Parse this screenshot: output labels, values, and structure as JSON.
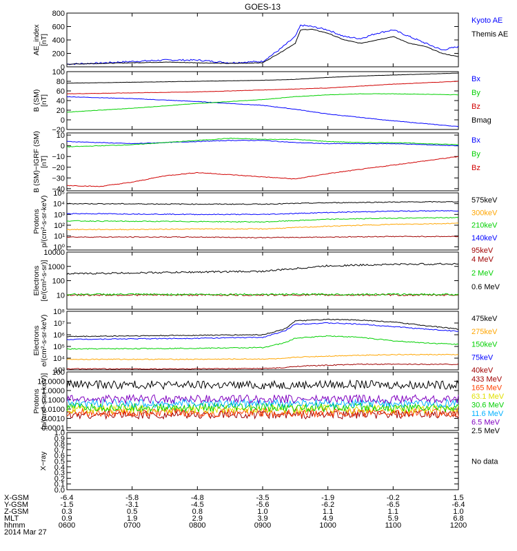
{
  "title": "GOES-13",
  "date": "2014 Mar 27",
  "footer": {
    "rows": [
      {
        "label": "X-GSM",
        "values": [
          "-6.4",
          "-5.8",
          "-4.8",
          "-3.5",
          "-1.9",
          "-0.2",
          "1.5"
        ]
      },
      {
        "label": "Y-GSM",
        "values": [
          "-1.5",
          "-3.1",
          "-4.5",
          "-5.6",
          "-6.2",
          "-6.5",
          "-6.4"
        ]
      },
      {
        "label": "Z-GSM",
        "values": [
          "0.3",
          "0.5",
          "0.8",
          "1.0",
          "1.1",
          "1.1",
          "1.0"
        ]
      },
      {
        "label": "MLT",
        "values": [
          "0.9",
          "1.9",
          "2.9",
          "3.9",
          "4.9",
          "5.9",
          "6.8"
        ]
      },
      {
        "label": "hhmm",
        "values": [
          "0600",
          "0700",
          "0800",
          "0900",
          "1000",
          "1100",
          "1200"
        ]
      }
    ]
  },
  "chart_data": [
    {
      "type": "line",
      "ylabel": [
        "AE_index",
        "[nT]"
      ],
      "scale": "linear",
      "ylim": [
        0,
        800
      ],
      "yticks": [
        0,
        200,
        400,
        600,
        800
      ],
      "yticklabels": [
        "0",
        "200",
        "400",
        "600",
        "800"
      ],
      "x": [
        "0600",
        "0630",
        "0700",
        "0730",
        "0800",
        "0830",
        "0900",
        "0915",
        "0930",
        "0935",
        "0945",
        "1000",
        "1015",
        "1030",
        "1045",
        "1100",
        "1115",
        "1130",
        "1145",
        "1200"
      ],
      "series": [
        {
          "name": "Kyoto AE",
          "color": "#0000ff",
          "values": [
            40,
            55,
            80,
            100,
            100,
            60,
            80,
            250,
            450,
            620,
            600,
            550,
            450,
            420,
            500,
            550,
            450,
            350,
            250,
            300
          ]
        },
        {
          "name": "Themis AE",
          "color": "#000000",
          "values": [
            40,
            50,
            60,
            70,
            60,
            50,
            60,
            200,
            350,
            550,
            560,
            500,
            400,
            350,
            400,
            450,
            350,
            300,
            200,
            150
          ]
        }
      ]
    },
    {
      "type": "line",
      "ylabel": [
        "B (SM)",
        "[nT]"
      ],
      "scale": "linear",
      "ylim": [
        -20,
        100
      ],
      "yticks": [
        -20,
        0,
        20,
        40,
        60,
        80,
        100
      ],
      "yticklabels": [
        "−20",
        "0",
        "20",
        "40",
        "60",
        "80",
        "100"
      ],
      "x": [
        "0600",
        "0700",
        "0800",
        "0830",
        "0900",
        "0930",
        "1000",
        "1030",
        "1100",
        "1130",
        "1200"
      ],
      "series": [
        {
          "name": "Bx",
          "color": "#0000ff",
          "values": [
            48,
            44,
            38,
            34,
            30,
            22,
            12,
            5,
            -2,
            -8,
            -14
          ]
        },
        {
          "name": "By",
          "color": "#00d000",
          "values": [
            16,
            24,
            34,
            38,
            42,
            48,
            52,
            54,
            54,
            53,
            52
          ]
        },
        {
          "name": "Bz",
          "color": "#d00000",
          "values": [
            54,
            56,
            58,
            60,
            62,
            64,
            66,
            70,
            74,
            77,
            80
          ]
        },
        {
          "name": "Bmag",
          "color": "#000000",
          "values": [
            76,
            78,
            80,
            81,
            82,
            84,
            88,
            91,
            93,
            95,
            97
          ]
        }
      ]
    },
    {
      "type": "line",
      "ylabel": [
        "B (SM)−IGRF (SM)",
        "[nT]"
      ],
      "scale": "linear",
      "ylim": [
        -42,
        12
      ],
      "yticks": [
        -40,
        -30,
        -20,
        -10,
        0,
        10
      ],
      "yticklabels": [
        "−40",
        "−30",
        "−20",
        "−10",
        "0",
        "10"
      ],
      "x": [
        "0600",
        "0630",
        "0700",
        "0730",
        "0800",
        "0830",
        "0900",
        "0930",
        "1000",
        "1030",
        "1100",
        "1130",
        "1200"
      ],
      "series": [
        {
          "name": "Bx",
          "color": "#0000ff",
          "values": [
            4,
            3,
            2,
            3,
            4,
            5,
            5,
            3,
            2,
            2,
            2,
            1,
            0
          ]
        },
        {
          "name": "By",
          "color": "#00d000",
          "values": [
            -1,
            0,
            1,
            3,
            5,
            7,
            6,
            6,
            4,
            3,
            3,
            2,
            1
          ]
        },
        {
          "name": "Bz",
          "color": "#d00000",
          "values": [
            -37,
            -38,
            -34,
            -28,
            -25,
            -27,
            -29,
            -31,
            -26,
            -22,
            -18,
            -14,
            -10
          ]
        }
      ]
    },
    {
      "type": "line",
      "ylabel": [
        "Protons",
        "p/(cm²-s-sr-keV)"
      ],
      "scale": "log",
      "ylim": [
        0.5,
        100000
      ],
      "yticks": [
        1,
        10,
        100,
        1000,
        10000,
        100000
      ],
      "yticklabels": [
        "10⁰",
        "10¹",
        "10²",
        "10³",
        "10⁴",
        "10⁵"
      ],
      "x": [
        "0600",
        "0700",
        "0800",
        "0900",
        "1000",
        "1100",
        "1200"
      ],
      "series": [
        {
          "name": "575keV",
          "color": "#000000",
          "values": [
            10000,
            9500,
            9000,
            9000,
            12000,
            14000,
            15000
          ]
        },
        {
          "name": "300keV",
          "color": "#ffa500",
          "values": [
            40,
            40,
            45,
            45,
            80,
            120,
            150
          ]
        },
        {
          "name": "210keV",
          "color": "#00d000",
          "values": [
            250,
            230,
            220,
            200,
            350,
            450,
            500
          ]
        },
        {
          "name": "140keV",
          "color": "#0000ff",
          "values": [
            1200,
            1100,
            1000,
            1000,
            1500,
            2000,
            2200
          ]
        },
        {
          "name": "95keV",
          "color": "#a00000",
          "values": [
            8,
            8,
            8,
            7,
            8,
            9,
            9
          ]
        }
      ]
    },
    {
      "type": "line",
      "ylabel": [
        "Electrons",
        "[e/(cm²-s-sr)]"
      ],
      "scale": "log",
      "ylim": [
        1,
        10000
      ],
      "yticks": [
        10,
        100,
        1000,
        10000
      ],
      "yticklabels": [
        "10",
        "100",
        "1000",
        "10000"
      ],
      "x": [
        "0600",
        "0700",
        "0800",
        "0900",
        "0930",
        "1000",
        "1100",
        "1200"
      ],
      "series": [
        {
          "name": "4 MeV",
          "color": "#a00000",
          "values": [
            10,
            10,
            10,
            10,
            10,
            10,
            10,
            10
          ]
        },
        {
          "name": "2 MeV",
          "color": "#00d000",
          "values": [
            11,
            11,
            11,
            11,
            11,
            11,
            11,
            11
          ]
        },
        {
          "name": "0.6 MeV",
          "color": "#000000",
          "values": [
            300,
            350,
            400,
            450,
            700,
            1100,
            1400,
            1500
          ]
        }
      ]
    },
    {
      "type": "line",
      "ylabel": [
        "Electrons",
        "e/(cm²-s-sr-keV)"
      ],
      "scale": "log",
      "ylim": [
        1000,
        100000000
      ],
      "yticks": [
        1000,
        10000,
        100000,
        1000000,
        10000000,
        100000000
      ],
      "yticklabels": [
        "10³",
        "10⁴",
        "10⁵",
        "10⁶",
        "10⁷",
        "10⁸"
      ],
      "x": [
        "0600",
        "0700",
        "0800",
        "0900",
        "0920",
        "0930",
        "1000",
        "1030",
        "1100",
        "1130",
        "1200"
      ],
      "series": [
        {
          "name": "475keV",
          "color": "#000000",
          "values": [
            700000,
            800000,
            900000,
            1000000,
            3000000,
            15000000,
            20000000,
            18000000,
            12000000,
            6000000,
            3000000
          ]
        },
        {
          "name": "275keV",
          "color": "#ffa500",
          "values": [
            8000,
            8000,
            8000,
            8500,
            9000,
            12000,
            15000,
            18000,
            20000,
            20000,
            20000
          ]
        },
        {
          "name": "150keV",
          "color": "#00d000",
          "values": [
            60000,
            65000,
            70000,
            80000,
            200000,
            500000,
            800000,
            600000,
            300000,
            200000,
            150000
          ]
        },
        {
          "name": "75keV",
          "color": "#0000ff",
          "values": [
            400000,
            450000,
            500000,
            600000,
            2000000,
            8000000,
            10000000,
            8000000,
            5000000,
            3000000,
            2000000
          ]
        },
        {
          "name": "40keV",
          "color": "#a00000",
          "values": [
            1200,
            1200,
            1200,
            1300,
            1500,
            2000,
            2500,
            3000,
            3000,
            3000,
            3000
          ]
        }
      ]
    },
    {
      "type": "line",
      "ylabel": [
        "Protons",
        "[p/(cm²-s-sr-keV)]"
      ],
      "scale": "log",
      "ylim": [
        5e-05,
        100
      ],
      "yticks": [
        0.0001,
        0.001,
        0.01,
        0.1,
        1,
        10,
        100
      ],
      "yticklabels": [
        "0.0001",
        "0.0010",
        "0.0100",
        "0.1000",
        "1.0000",
        "10.0000",
        "100"
      ],
      "x": [
        "0600",
        "0700",
        "0800",
        "0900",
        "1000",
        "1100",
        "1200"
      ],
      "series": [
        {
          "name": "433 MeV",
          "color": "#a00000",
          "values": [
            0.0025,
            0.0025,
            0.0025,
            0.0025,
            0.0025,
            0.0025,
            0.0025
          ]
        },
        {
          "name": "165 MeV",
          "color": "#ff4000",
          "values": [
            0.004,
            0.004,
            0.004,
            0.004,
            0.004,
            0.004,
            0.004
          ]
        },
        {
          "name": "63.1 MeV",
          "color": "#e0e000",
          "values": [
            0.01,
            0.01,
            0.01,
            0.01,
            0.01,
            0.01,
            0.01
          ]
        },
        {
          "name": "30.6 MeV",
          "color": "#00d000",
          "values": [
            0.015,
            0.015,
            0.015,
            0.015,
            0.015,
            0.015,
            0.015
          ]
        },
        {
          "name": "11.6 MeV",
          "color": "#00b0ff",
          "values": [
            0.04,
            0.04,
            0.04,
            0.04,
            0.04,
            0.04,
            0.04
          ]
        },
        {
          "name": "6.5 MeV",
          "color": "#8000c0",
          "values": [
            0.12,
            0.12,
            0.12,
            0.12,
            0.12,
            0.12,
            0.12
          ]
        },
        {
          "name": "2.5 MeV",
          "color": "#000000",
          "values": [
            4.5,
            4.2,
            4,
            3.8,
            4.5,
            4.2,
            4
          ]
        }
      ]
    },
    {
      "type": "line",
      "ylabel": [
        "X−ray"
      ],
      "scale": "linear",
      "ylim": [
        0,
        1
      ],
      "yticks": [
        0,
        0.1,
        0.2,
        0.3,
        0.4,
        0.5,
        0.6,
        0.7,
        0.8,
        0.9,
        1.0
      ],
      "yticklabels": [
        "0.0",
        "0.1",
        "0.2",
        "0.3",
        "0.4",
        "0.5",
        "0.6",
        "0.7",
        "0.8",
        "0.9",
        "1.0"
      ],
      "x": [],
      "series": [],
      "note": "No data"
    }
  ]
}
